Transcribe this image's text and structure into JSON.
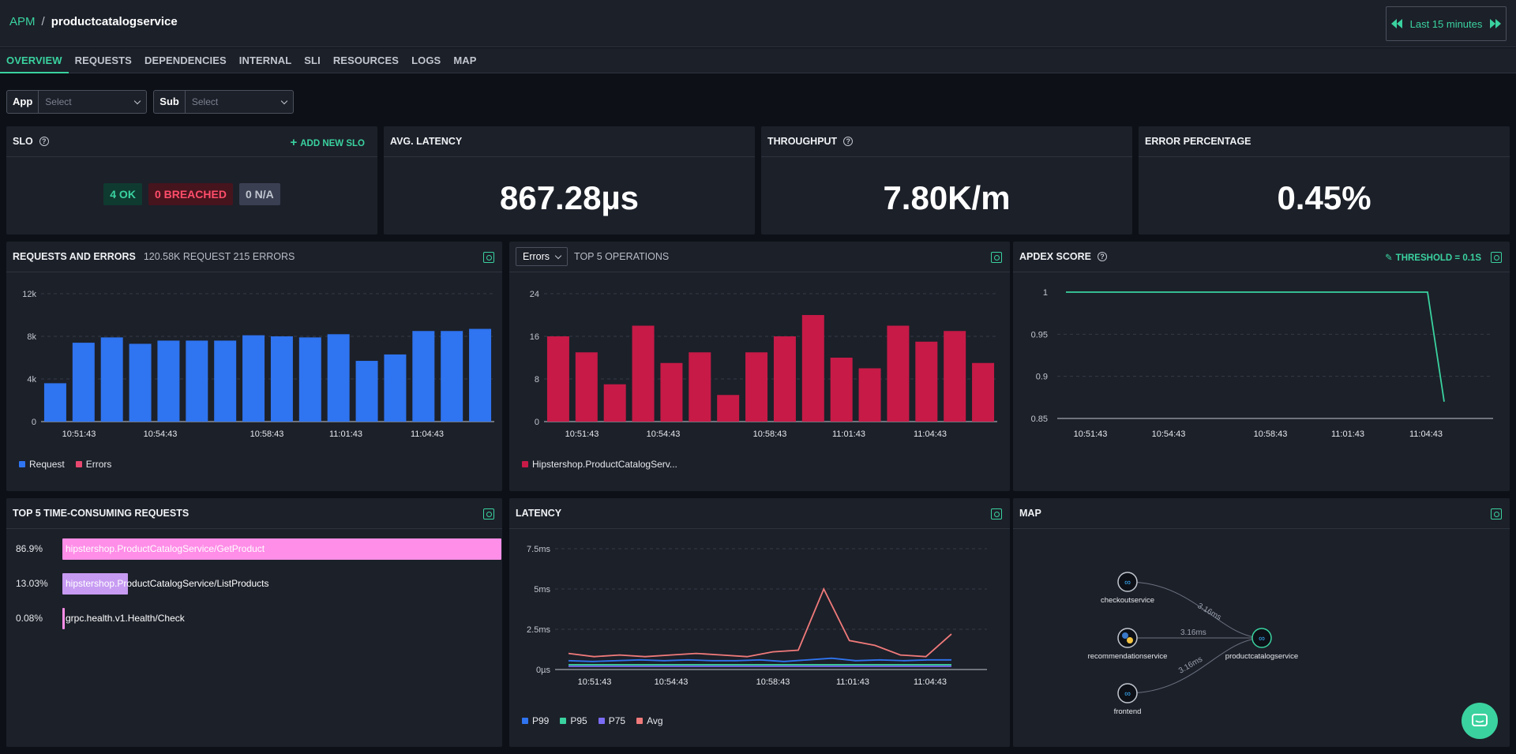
{
  "header": {
    "app": "APM",
    "separator": "/",
    "service": "productcatalogservice",
    "time_range": "Last 15 minutes"
  },
  "tabs": [
    "OVERVIEW",
    "REQUESTS",
    "DEPENDENCIES",
    "INTERNAL",
    "SLI",
    "RESOURCES",
    "LOGS",
    "MAP"
  ],
  "active_tab": "OVERVIEW",
  "filters": [
    {
      "label": "App",
      "placeholder": "Select"
    },
    {
      "label": "Sub",
      "placeholder": "Select"
    }
  ],
  "slo": {
    "title": "SLO",
    "add_label": "ADD NEW SLO",
    "ok": "4 OK",
    "breached": "0 BREACHED",
    "na": "0 N/A"
  },
  "avg_latency": {
    "title": "AVG. LATENCY",
    "value": "867.28µs"
  },
  "throughput": {
    "title": "THROUGHPUT",
    "value": "7.80K/m"
  },
  "error_percentage": {
    "title": "ERROR PERCENTAGE",
    "value": "0.45%"
  },
  "requests_errors": {
    "title": "REQUESTS AND ERRORS",
    "summary": "120.58K REQUEST 215 ERRORS",
    "legend": [
      "Request",
      "Errors"
    ],
    "yticks": [
      "12k",
      "8k",
      "4k",
      "0"
    ],
    "xticks": [
      "10:51:43",
      "10:54:43",
      "10:58:43",
      "11:01:43",
      "11:04:43"
    ]
  },
  "top_ops": {
    "dropdown": "Errors",
    "title": "TOP 5 OPERATIONS",
    "legend": "Hipstershop.ProductCatalogServ...",
    "yticks": [
      "24",
      "16",
      "8",
      "0"
    ],
    "xticks": [
      "10:51:43",
      "10:54:43",
      "10:58:43",
      "11:01:43",
      "11:04:43"
    ]
  },
  "apdex": {
    "title": "APDEX SCORE",
    "threshold": "THRESHOLD = 0.1S",
    "yticks": [
      "1",
      "0.95",
      "0.9",
      "0.85"
    ],
    "xticks": [
      "10:51:43",
      "10:54:43",
      "10:58:43",
      "11:01:43",
      "11:04:43"
    ]
  },
  "top5": {
    "title": "TOP 5 TIME-CONSUMING REQUESTS",
    "rows": [
      {
        "pct": "86.9%",
        "label": "hipstershop.ProductCatalogService/GetProduct",
        "value": 0.869
      },
      {
        "pct": "13.03%",
        "label": "hipstershop.ProductCatalogService/ListProducts",
        "value": 0.1303
      },
      {
        "pct": "0.08%",
        "label": "grpc.health.v1.Health/Check",
        "value": 0.0008
      }
    ]
  },
  "latency": {
    "title": "LATENCY",
    "yticks": [
      "7.5ms",
      "5ms",
      "2.5ms",
      "0µs"
    ],
    "xticks": [
      "10:51:43",
      "10:54:43",
      "10:58:43",
      "11:01:43",
      "11:04:43"
    ],
    "legend": [
      "P99",
      "P95",
      "P75",
      "Avg"
    ]
  },
  "map": {
    "title": "MAP",
    "nodes": [
      "checkoutservice",
      "recommendationservice",
      "frontend",
      "productcatalogservice"
    ],
    "edge_labels": [
      "3.16ms",
      "3.16ms",
      "3.16ms"
    ]
  },
  "chart_data": [
    {
      "type": "bar",
      "title": "REQUESTS AND ERRORS",
      "ylim": [
        0,
        12000
      ],
      "series": [
        {
          "name": "Request",
          "color": "#2f74f0",
          "values": [
            3600,
            7400,
            7900,
            7300,
            7600,
            7600,
            7600,
            8100,
            8000,
            7900,
            8200,
            5700,
            6300,
            8500,
            8500,
            8700
          ]
        },
        {
          "name": "Errors",
          "color": "#e8486f",
          "values": [
            16,
            13,
            7,
            18,
            11,
            13,
            5,
            13,
            16,
            20,
            12,
            10,
            18,
            15,
            17,
            11
          ]
        }
      ]
    },
    {
      "type": "bar",
      "title": "TOP 5 OPERATIONS",
      "ylim": [
        0,
        24
      ],
      "series": [
        {
          "name": "Hipstershop.ProductCatalogServ...",
          "color": "#c71a47",
          "values": [
            16,
            13,
            7,
            18,
            11,
            13,
            5,
            13,
            16,
            20,
            12,
            10,
            18,
            15,
            17,
            11
          ]
        }
      ]
    },
    {
      "type": "line",
      "title": "APDEX SCORE",
      "ylim": [
        0.85,
        1
      ],
      "series": [
        {
          "name": "Apdex",
          "color": "#3ad29f",
          "values": [
            1,
            1,
            1,
            1,
            1,
            1,
            1,
            1,
            1,
            1,
            1,
            1,
            1,
            1,
            1,
            0.87
          ]
        }
      ]
    },
    {
      "type": "line",
      "title": "LATENCY",
      "ylim": [
        0,
        7.5
      ],
      "series": [
        {
          "name": "P99",
          "color": "#2f74f0",
          "values": [
            0.55,
            0.5,
            0.55,
            0.6,
            0.55,
            0.6,
            0.55,
            0.55,
            0.6,
            0.5,
            0.6,
            0.7,
            0.55,
            0.6,
            0.55,
            0.6,
            0.6
          ]
        },
        {
          "name": "P95",
          "color": "#3ad29f",
          "values": [
            0.3,
            0.3,
            0.3,
            0.3,
            0.3,
            0.3,
            0.3,
            0.3,
            0.3,
            0.3,
            0.3,
            0.3,
            0.3,
            0.3,
            0.3,
            0.3,
            0.3
          ]
        },
        {
          "name": "P75",
          "color": "#7b6cf6",
          "values": [
            0.2,
            0.2,
            0.2,
            0.2,
            0.2,
            0.2,
            0.2,
            0.2,
            0.2,
            0.2,
            0.2,
            0.2,
            0.2,
            0.2,
            0.2,
            0.2,
            0.2
          ]
        },
        {
          "name": "Avg",
          "color": "#f07a7a",
          "values": [
            1.0,
            0.8,
            0.9,
            0.8,
            0.9,
            1.0,
            0.9,
            0.8,
            1.1,
            1.2,
            5.0,
            1.8,
            1.5,
            0.9,
            0.8,
            2.2
          ]
        }
      ]
    }
  ]
}
